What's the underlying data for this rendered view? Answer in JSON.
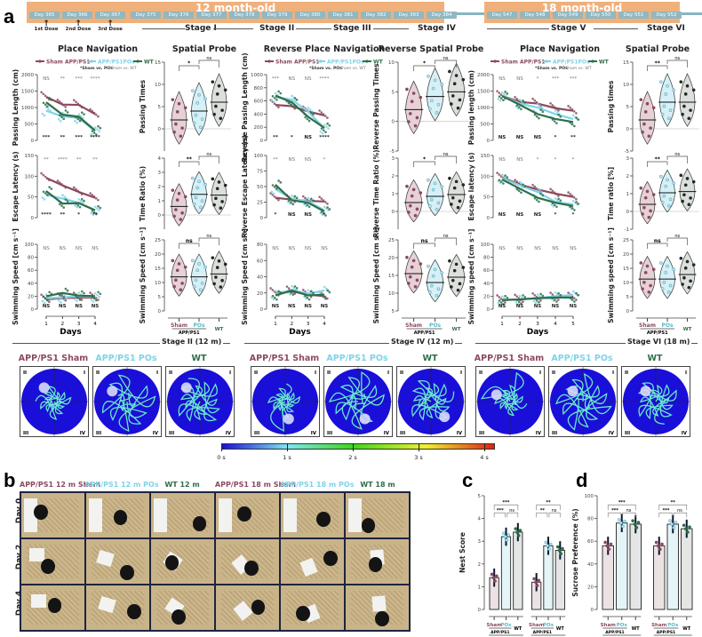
{
  "panels": {
    "a": "a",
    "b": "b",
    "c": "c",
    "d": "d"
  },
  "timeline": {
    "group_12m": "12 month-old",
    "group_18m": "18 month-old",
    "days_12m": [
      "Day 365",
      "Day 366",
      "Day 367",
      "Day 375",
      "Day 376",
      "Day 377",
      "Day 378",
      "Day 379",
      "Day 380",
      "Day 381",
      "Day 382",
      "Day 383",
      "Day 384"
    ],
    "days_18m": [
      "Day 547",
      "Day 548",
      "Day 549",
      "Day 550",
      "Day 551",
      "Day 552"
    ],
    "doses": [
      "1st Dose",
      "2nd Dose",
      "3rd Dose"
    ],
    "stages": [
      "Stage I",
      "Stage II",
      "Stage III",
      "Stage IV",
      "Stage V",
      "Stage VI"
    ]
  },
  "section_titles": [
    "Place Navigation",
    "Spatial Probe",
    "Reverse Place Navigation",
    "Reverse Spatial Probe",
    "Place Navigation",
    "Spatial Probe"
  ],
  "legend": {
    "items": [
      {
        "label": "Sham APP/PS1",
        "color": "#8b4a5e"
      },
      {
        "label": "APP/PS1POs",
        "color": "#7fd3e8"
      },
      {
        "label": "WT",
        "color": "#2e6e48"
      }
    ],
    "sig_note_1": "*Sham vs. POs",
    "sig_note_2": "*Sham vs. WT"
  },
  "colors": {
    "sham": "#8b4a5e",
    "pos": "#7fd3e8",
    "wt": "#2e6e48",
    "timeline": "#f0b07c",
    "day_chip": "#8fb8c2",
    "maze": "#1a0fd8"
  },
  "group_axis": {
    "sham": "Sham",
    "pos": "POs",
    "appps1": "APP/PS1",
    "wt": "WT"
  },
  "days_label": "Days",
  "chart_data": [
    {
      "id": "pn12-length",
      "type": "line",
      "ylabel": "Passing Length (cm)",
      "x": [
        1,
        2,
        3,
        4
      ],
      "ylim": [
        0,
        2000
      ],
      "yticks": [
        0,
        500,
        1000,
        1500,
        2000
      ],
      "series": [
        {
          "name": "Sham APP/PS1",
          "values": [
            1320,
            1090,
            1080,
            800
          ]
        },
        {
          "name": "APP/PS1POs",
          "values": [
            900,
            730,
            680,
            280
          ]
        },
        {
          "name": "WT",
          "values": [
            1160,
            780,
            720,
            300
          ]
        }
      ],
      "sig_top": [
        "NS",
        "**",
        "***",
        "****"
      ],
      "sig_bottom": [
        "***",
        "**",
        "***",
        "****"
      ]
    },
    {
      "id": "pn12-latency",
      "type": "line",
      "ylabel": "Escape Latency (s)",
      "x": [
        1,
        2,
        3,
        4
      ],
      "ylim": [
        0,
        150
      ],
      "yticks": [
        0,
        50,
        100,
        150
      ],
      "series": [
        {
          "name": "Sham APP/PS1",
          "values": [
            96,
            78,
            62,
            48
          ]
        },
        {
          "name": "APP/PS1POs",
          "values": [
            55,
            46,
            36,
            18
          ]
        },
        {
          "name": "WT",
          "values": [
            64,
            34,
            35,
            18
          ]
        }
      ],
      "sig_top": [
        "**",
        "****",
        "**",
        "**"
      ],
      "sig_bottom": [
        "****",
        "**",
        "*",
        "**"
      ]
    },
    {
      "id": "pn12-speed",
      "type": "line",
      "ylabel": "Swimming Speed [cm s⁻¹]",
      "x": [
        1,
        2,
        3,
        4
      ],
      "ylim": [
        0,
        100
      ],
      "yticks": [
        0,
        20,
        40,
        60,
        80,
        100
      ],
      "xlabel": "Days",
      "series": [
        {
          "name": "Sham APP/PS1",
          "values": [
            15,
            17,
            18,
            18
          ]
        },
        {
          "name": "APP/PS1POs",
          "values": [
            17,
            18,
            20,
            19
          ]
        },
        {
          "name": "WT",
          "values": [
            20,
            25,
            21,
            20
          ]
        }
      ],
      "sig_top": [
        "NS",
        "NS",
        "NS",
        "NS"
      ],
      "sig_bottom": [
        "NS",
        "NS",
        "NS",
        "NS"
      ]
    },
    {
      "id": "sp12-times",
      "type": "violin",
      "ylabel": "Passing Times",
      "ylim": [
        -5,
        15
      ],
      "yticks": [
        0,
        5,
        10,
        15
      ],
      "medians": [
        2,
        4,
        6
      ],
      "sig": [
        "*",
        "ns"
      ]
    },
    {
      "id": "sp12-ratio",
      "type": "violin",
      "ylabel": "Time Ratio (%)",
      "ylim": [
        -1,
        4
      ],
      "yticks": [
        0,
        1,
        2,
        3,
        4
      ],
      "medians": [
        0.6,
        1.45,
        1.4
      ],
      "sig": [
        "**",
        "ns"
      ]
    },
    {
      "id": "sp12-speed",
      "type": "violin",
      "ylabel": "Swimming Speed [cm s⁻¹]",
      "ylim": [
        0,
        25
      ],
      "yticks": [
        0,
        5,
        10,
        15,
        20,
        25
      ],
      "medians": [
        12,
        12,
        13
      ],
      "sig": [
        "ns",
        "ns"
      ]
    },
    {
      "id": "rpn12-length",
      "type": "line",
      "ylabel": "Reverse Passing Length (cm)",
      "x": [
        1,
        2,
        3,
        4
      ],
      "ylim": [
        0,
        1000
      ],
      "yticks": [
        0,
        200,
        400,
        600,
        800,
        1000
      ],
      "series": [
        {
          "name": "Sham APP/PS1",
          "values": [
            540,
            520,
            440,
            380
          ]
        },
        {
          "name": "APP/PS1POs",
          "values": [
            660,
            620,
            440,
            180
          ]
        },
        {
          "name": "WT",
          "values": [
            680,
            580,
            360,
            190
          ]
        }
      ],
      "sig_top": [
        "***",
        "NS",
        "NS",
        "****"
      ],
      "sig_bottom": [
        "**",
        "*",
        "NS",
        "****"
      ]
    },
    {
      "id": "rpn12-latency",
      "type": "line",
      "ylabel": "Reverse Escape Latency (s)",
      "x": [
        1,
        2,
        3,
        4
      ],
      "ylim": [
        0,
        100
      ],
      "yticks": [
        0,
        25,
        50,
        75,
        100
      ],
      "series": [
        {
          "name": "Sham APP/PS1",
          "values": [
            32,
            29,
            27,
            26
          ]
        },
        {
          "name": "APP/PS1POs",
          "values": [
            46,
            30,
            26,
            12
          ]
        },
        {
          "name": "WT",
          "values": [
            53,
            28,
            24,
            10
          ]
        }
      ],
      "sig_top": [
        "**",
        "NS",
        "NS",
        "*"
      ],
      "sig_bottom": [
        "*",
        "NS",
        "NS",
        "*"
      ]
    },
    {
      "id": "rpn12-speed",
      "type": "line",
      "ylabel": "Swimming Speed [cm s⁻¹]",
      "x": [
        1,
        2,
        3,
        4
      ],
      "ylim": [
        0,
        80
      ],
      "yticks": [
        0,
        20,
        40,
        60,
        80
      ],
      "xlabel": "Days",
      "series": [
        {
          "name": "Sham APP/PS1",
          "values": [
            20,
            22,
            18,
            16
          ]
        },
        {
          "name": "APP/PS1POs",
          "values": [
            18,
            24,
            19,
            23
          ]
        },
        {
          "name": "WT",
          "values": [
            17,
            23,
            17,
            18
          ]
        }
      ],
      "sig_top": [
        "NS",
        "NS",
        "NS",
        "NS"
      ],
      "sig_bottom": [
        "NS",
        "NS",
        "NS",
        "NS"
      ]
    },
    {
      "id": "rsp12-times",
      "type": "violin",
      "ylabel": "Reverse Passing Times",
      "ylim": [
        -5,
        10
      ],
      "yticks": [
        -5,
        0,
        5,
        10
      ],
      "medians": [
        2,
        4.2,
        5
      ],
      "sig": [
        "*",
        "ns"
      ]
    },
    {
      "id": "rsp12-ratio",
      "type": "violin",
      "ylabel": "Reverse Time Ratio (%)",
      "ylim": [
        -1,
        3
      ],
      "yticks": [
        0,
        1,
        2,
        3
      ],
      "medians": [
        0.5,
        0.85,
        0.95
      ],
      "sig": [
        "*",
        "ns"
      ]
    },
    {
      "id": "rsp12-speed",
      "type": "violin",
      "ylabel": "Swimming Speed [cm s⁻¹]",
      "ylim": [
        5,
        25
      ],
      "yticks": [
        5,
        10,
        15,
        20,
        25
      ],
      "medians": [
        15.5,
        13,
        14.5
      ],
      "sig": [
        "ns",
        "ns"
      ]
    },
    {
      "id": "pn18-length",
      "type": "line",
      "ylabel": "Passing length (cm)",
      "x": [
        1,
        2,
        3,
        4,
        5
      ],
      "ylim": [
        0,
        2000
      ],
      "yticks": [
        0,
        500,
        1000,
        1500,
        2000
      ],
      "series": [
        {
          "name": "Sham APP/PS1",
          "values": [
            1350,
            1170,
            1120,
            980,
            900
          ]
        },
        {
          "name": "APP/PS1POs",
          "values": [
            1350,
            1120,
            1000,
            800,
            650
          ]
        },
        {
          "name": "WT",
          "values": [
            1350,
            1080,
            800,
            650,
            560
          ]
        }
      ],
      "sig_top": [
        "NS",
        "NS",
        "*",
        "***",
        "***"
      ],
      "sig_bottom": [
        "NS",
        "NS",
        "NS",
        "*",
        "**"
      ]
    },
    {
      "id": "pn18-latency",
      "type": "line",
      "ylabel": "Escape latency (s)",
      "x": [
        1,
        2,
        3,
        4,
        5
      ],
      "ylim": [
        0,
        150
      ],
      "yticks": [
        0,
        50,
        100,
        150
      ],
      "series": [
        {
          "name": "Sham APP/PS1",
          "values": [
            97,
            80,
            68,
            58,
            50
          ]
        },
        {
          "name": "APP/PS1POs",
          "values": [
            95,
            78,
            62,
            38,
            32
          ]
        },
        {
          "name": "WT",
          "values": [
            92,
            70,
            48,
            36,
            28
          ]
        }
      ],
      "sig_top": [
        "NS",
        "NS",
        "*",
        "*",
        "*"
      ],
      "sig_bottom": [
        "NS",
        "NS",
        "NS",
        "*",
        "*"
      ]
    },
    {
      "id": "pn18-speed",
      "type": "line",
      "ylabel": "Swimming speed [cm s⁻¹]",
      "x": [
        1,
        2,
        3,
        4,
        5
      ],
      "ylim": [
        0,
        100
      ],
      "yticks": [
        0,
        20,
        40,
        60,
        80,
        100
      ],
      "xlabel": "Days",
      "series": [
        {
          "name": "Sham APP/PS1",
          "values": [
            14,
            15,
            17,
            18,
            18
          ]
        },
        {
          "name": "APP/PS1POs",
          "values": [
            14,
            15,
            17,
            20,
            22
          ]
        },
        {
          "name": "WT",
          "values": [
            14,
            15,
            17,
            18,
            18
          ]
        }
      ],
      "sig_top": [
        "NS",
        "NS",
        "NS",
        "NS",
        "NS"
      ],
      "sig_bottom": [
        "NS",
        "NS",
        "NS",
        "NS",
        "NS"
      ]
    },
    {
      "id": "sp18-times",
      "type": "violin",
      "ylabel": "Passing times",
      "ylim": [
        -5,
        15
      ],
      "yticks": [
        -5,
        0,
        5,
        10,
        15
      ],
      "medians": [
        2,
        6,
        6
      ],
      "sig": [
        "**",
        "ns"
      ]
    },
    {
      "id": "sp18-ratio",
      "type": "violin",
      "ylabel": "Time ratio [%]",
      "ylim": [
        -1,
        3
      ],
      "yticks": [
        -1,
        0,
        1,
        2,
        3
      ],
      "medians": [
        0.4,
        1.05,
        1.12
      ],
      "sig": [
        "**",
        "ns"
      ]
    },
    {
      "id": "sp18-speed",
      "type": "violin",
      "ylabel": "Swimming speed [cm s⁻¹]",
      "ylim": [
        0,
        25
      ],
      "yticks": [
        0,
        5,
        10,
        15,
        20,
        25
      ],
      "medians": [
        11.2,
        11.2,
        12.8
      ],
      "sig": [
        "ns",
        "ns"
      ]
    },
    {
      "id": "nest",
      "type": "bar",
      "title": "",
      "ylabel": "Nest Score",
      "ylim": [
        0,
        5
      ],
      "yticks": [
        0,
        1,
        2,
        3,
        4,
        5
      ],
      "groups": [
        "12m",
        "18m"
      ],
      "categories": [
        "Sham",
        "POs",
        "WT"
      ],
      "series": [
        {
          "name": "12m",
          "values": [
            1.4,
            3.2,
            3.4
          ]
        },
        {
          "name": "18m",
          "values": [
            1.2,
            2.8,
            2.6
          ]
        }
      ],
      "sig_12m": [
        "***",
        "***",
        "ns"
      ],
      "sig_18m": [
        "**",
        "**",
        "ns"
      ]
    },
    {
      "id": "sucrose",
      "type": "bar",
      "ylabel": "Sucrose Preference (%)",
      "ylim": [
        0,
        100
      ],
      "yticks": [
        0,
        20,
        40,
        60,
        80,
        100
      ],
      "groups": [
        "12m",
        "18m"
      ],
      "categories": [
        "Sham",
        "POs",
        "WT"
      ],
      "series": [
        {
          "name": "12m",
          "values": [
            56,
            76,
            75
          ]
        },
        {
          "name": "18m",
          "values": [
            56,
            75,
            71
          ]
        }
      ],
      "sig_12m": [
        "***",
        "***",
        "ns"
      ],
      "sig_18m": [
        "**",
        "***",
        "ns"
      ]
    }
  ],
  "maze": {
    "stage_captions": [
      "Stage II (12 m)",
      "Stage IV (12 m)",
      "Stage VI (18 m)"
    ],
    "labels": [
      "APP/PS1 Sham",
      "APP/PS1 POs",
      "WT",
      "APP/PS1 Sham",
      "APP/PS1 POs",
      "WT",
      "APP/PS1 Sham",
      "APP/PS1 POs",
      "WT"
    ],
    "quadrants": [
      "II",
      "I",
      "III",
      "IV"
    ],
    "colorbar_ticks": [
      "0 s",
      "1 s",
      "2 s",
      "3 s",
      "4 s"
    ]
  },
  "nest_photos": {
    "columns": [
      "APP/PS1 12 m Sham",
      "APP/PS1 12 m POs",
      "WT 12 m",
      "APP/PS1 18 m Sham",
      "APP/PS1 18 m POs",
      "WT 18 m"
    ],
    "rows": [
      "Day 0",
      "Day 2",
      "Day 4"
    ]
  }
}
